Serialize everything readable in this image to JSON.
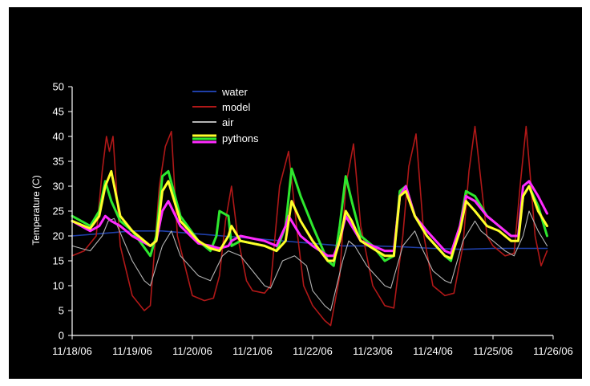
{
  "chart_data": {
    "type": "line",
    "title": "",
    "xlabel": "",
    "ylabel": "Temperature (C)",
    "ylim": [
      0,
      50
    ],
    "yticks": [
      "0",
      "5",
      "10",
      "15",
      "20",
      "25",
      "30",
      "35",
      "40",
      "45",
      "50"
    ],
    "xticks": [
      "11/18/06",
      "11/19/06",
      "11/20/06",
      "11/21/06",
      "11/22/06",
      "11/23/06",
      "11/24/06",
      "11/25/06",
      "11/26/06"
    ],
    "xlim_days": [
      0,
      8
    ],
    "grid": false,
    "legend_placement": "top-center",
    "background": "#000000",
    "series": [
      {
        "name": "water",
        "color": "#1f3fa8",
        "width": 1.6,
        "x": [
          0,
          0.5,
          1,
          1.5,
          2,
          2.5,
          3,
          3.5,
          4,
          4.5,
          5,
          5.5,
          6,
          6.5,
          7,
          7.5,
          7.9
        ],
        "values": [
          20,
          20.5,
          21,
          21,
          20.5,
          20,
          19.5,
          19,
          18.5,
          18,
          18,
          17.8,
          17.5,
          17.3,
          17.5,
          17.5,
          17.5
        ]
      },
      {
        "name": "model",
        "color": "#b01818",
        "width": 1.6,
        "x": [
          0,
          0.2,
          0.4,
          0.5,
          0.57,
          0.62,
          0.68,
          0.8,
          1,
          1.2,
          1.3,
          1.45,
          1.55,
          1.65,
          1.75,
          2,
          2.2,
          2.35,
          2.45,
          2.55,
          2.65,
          2.75,
          2.9,
          3,
          3.2,
          3.3,
          3.45,
          3.6,
          3.75,
          3.85,
          4,
          4.2,
          4.3,
          4.45,
          4.55,
          4.68,
          4.8,
          5,
          5.2,
          5.35,
          5.5,
          5.6,
          5.72,
          5.85,
          6,
          6.2,
          6.35,
          6.5,
          6.6,
          6.7,
          6.9,
          7,
          7.2,
          7.35,
          7.45,
          7.55,
          7.62,
          7.7,
          7.8,
          7.9
        ],
        "values": [
          16,
          17,
          20,
          33,
          40,
          37,
          40,
          18,
          8,
          5,
          6,
          30,
          38,
          41,
          20,
          8,
          7,
          7.5,
          12,
          23,
          30,
          20,
          11,
          9,
          8.5,
          10,
          30,
          37,
          20,
          10,
          6,
          3,
          2,
          12,
          30,
          38.5,
          22,
          10,
          6,
          5.5,
          20,
          34,
          40.5,
          20,
          10,
          8,
          8.5,
          18,
          33,
          42,
          20,
          18,
          16,
          16.5,
          30,
          42,
          32,
          20,
          14,
          17
        ]
      },
      {
        "name": "air",
        "color": "#b4b4b4",
        "width": 1.1,
        "x": [
          0,
          0.3,
          0.5,
          0.6,
          0.7,
          1,
          1.2,
          1.3,
          1.5,
          1.65,
          1.8,
          2.1,
          2.3,
          2.5,
          2.6,
          2.8,
          3,
          3.2,
          3.3,
          3.5,
          3.7,
          3.9,
          4,
          4.2,
          4.3,
          4.5,
          4.6,
          4.7,
          4.9,
          5.2,
          5.3,
          5.5,
          5.7,
          5.8,
          6,
          6.2,
          6.3,
          6.5,
          6.7,
          6.8,
          7,
          7.2,
          7.35,
          7.5,
          7.6,
          7.75,
          7.9
        ],
        "values": [
          18,
          17,
          20,
          23,
          23.5,
          15,
          11,
          10,
          18,
          21,
          16,
          12,
          11,
          16,
          17,
          16,
          13,
          10,
          9.5,
          15,
          16,
          14,
          9,
          6,
          5,
          15,
          19,
          18,
          14,
          10,
          9.5,
          18,
          21,
          18,
          13,
          11,
          10.5,
          19,
          23,
          21,
          19,
          17,
          16,
          20,
          25,
          21,
          18
        ]
      },
      {
        "name": "pythons",
        "color": "#2ee82e",
        "width": 3,
        "x": [
          0,
          0.3,
          0.45,
          0.55,
          0.65,
          0.8,
          1,
          1.3,
          1.4,
          1.5,
          1.6,
          1.8,
          2.1,
          2.3,
          2.4,
          2.45,
          2.6,
          2.65,
          2.8,
          3,
          3.2,
          3.4,
          3.55,
          3.65,
          3.8,
          4,
          4.25,
          4.35,
          4.45,
          4.55,
          4.65,
          4.8,
          5,
          5.2,
          5.35,
          5.45,
          5.55,
          5.7,
          5.9,
          6.2,
          6.3,
          6.45,
          6.55,
          6.7,
          6.9,
          7.1,
          7.3,
          7.42,
          7.5,
          7.6,
          7.75,
          7.9
        ],
        "values": [
          24,
          22,
          25,
          31,
          27,
          23,
          21,
          16,
          20,
          32,
          33,
          24,
          19,
          17,
          20,
          25,
          24,
          18,
          19,
          18.5,
          18,
          17,
          22,
          33.5,
          28,
          22,
          15,
          14,
          22,
          32,
          27,
          20,
          18,
          15,
          16,
          29,
          30,
          24,
          20,
          16,
          15,
          22,
          29,
          28,
          24,
          22,
          20,
          20,
          28,
          30,
          26,
          20
        ]
      },
      {
        "name": "pythons",
        "color": "#ff2aff",
        "width": 3,
        "x": [
          0,
          0.3,
          0.45,
          0.55,
          0.65,
          0.8,
          1,
          1.3,
          1.4,
          1.5,
          1.6,
          1.8,
          2.1,
          2.3,
          2.45,
          2.6,
          2.65,
          2.8,
          3,
          3.2,
          3.4,
          3.55,
          3.6,
          3.8,
          4,
          4.25,
          4.35,
          4.45,
          4.55,
          4.65,
          4.8,
          5,
          5.2,
          5.35,
          5.45,
          5.55,
          5.7,
          5.9,
          6.2,
          6.3,
          6.45,
          6.55,
          6.7,
          6.9,
          7.1,
          7.3,
          7.42,
          7.5,
          7.6,
          7.75,
          7.9
        ],
        "values": [
          23,
          21,
          22,
          24,
          23,
          22,
          20,
          18,
          19,
          25,
          27,
          22,
          18.5,
          18,
          17.5,
          18,
          19,
          20,
          19.5,
          19,
          18,
          22,
          24,
          20,
          18,
          16,
          16,
          19,
          24,
          22,
          19,
          18,
          17,
          17,
          28,
          30,
          24,
          21,
          17,
          16.5,
          22,
          28,
          27,
          24,
          22,
          20,
          20,
          30,
          31,
          28,
          24.5
        ]
      },
      {
        "name": "pythons",
        "color": "#ffff2a",
        "width": 3,
        "x": [
          0,
          0.3,
          0.45,
          0.55,
          0.65,
          0.8,
          1,
          1.3,
          1.4,
          1.5,
          1.6,
          1.8,
          2.1,
          2.3,
          2.45,
          2.6,
          2.65,
          2.8,
          3,
          3.2,
          3.4,
          3.55,
          3.65,
          3.8,
          4,
          4.25,
          4.35,
          4.45,
          4.55,
          4.65,
          4.8,
          5,
          5.2,
          5.35,
          5.45,
          5.55,
          5.7,
          5.9,
          6.2,
          6.3,
          6.45,
          6.55,
          6.7,
          6.9,
          7.1,
          7.3,
          7.42,
          7.5,
          7.6,
          7.75,
          7.9
        ],
        "values": [
          23,
          21.5,
          24,
          30,
          33,
          24,
          21,
          18,
          19,
          29,
          31,
          23,
          19,
          17.5,
          17,
          20,
          22,
          19,
          18.5,
          18,
          17,
          19,
          27,
          23,
          19,
          15,
          15,
          19,
          25,
          23,
          19,
          17.5,
          16,
          16,
          28,
          29,
          24,
          20,
          16,
          15.5,
          21,
          27,
          25,
          22,
          21,
          19,
          19,
          28,
          30,
          25,
          22
        ]
      }
    ]
  },
  "legend": [
    {
      "label": "water",
      "colors": [
        "#1f3fa8"
      ]
    },
    {
      "label": "model",
      "colors": [
        "#b01818"
      ]
    },
    {
      "label": "air",
      "colors": [
        "#b4b4b4"
      ]
    },
    {
      "label": "pythons",
      "colors": [
        "#ffff2a",
        "#2ee82e",
        "#ff2aff"
      ]
    }
  ]
}
